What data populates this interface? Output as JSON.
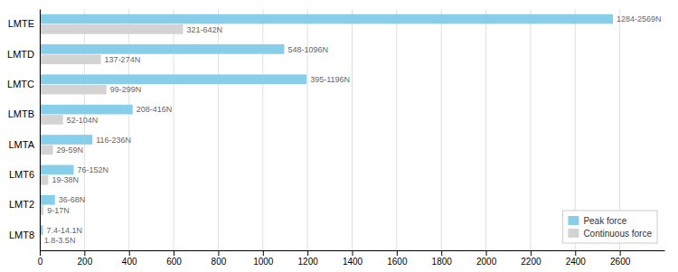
{
  "chart_data": {
    "type": "bar",
    "orientation": "horizontal",
    "categories": [
      "LMT8",
      "LMT2",
      "LMT6",
      "LMTA",
      "LMTB",
      "LMTC",
      "LMTD",
      "LMTE"
    ],
    "series": [
      {
        "name": "Peak force",
        "color": "#87CEEB",
        "values": [
          14.1,
          68,
          152,
          236,
          416,
          1196,
          1096,
          2569
        ],
        "value_labels": [
          "7.4-14.1N",
          "36-68N",
          "76-152N",
          "116-236N",
          "208-416N",
          "395-1196N",
          "548-1096N",
          "1284-2569N"
        ]
      },
      {
        "name": "Continuous force",
        "color": "#D3D3D3",
        "values": [
          3.5,
          17,
          38,
          59,
          104,
          299,
          274,
          642
        ],
        "value_labels": [
          "1.8-3.5N",
          "9-17N",
          "19-38N",
          "29-59N",
          "52-104N",
          "99-299N",
          "137-274N",
          "321-642N"
        ]
      }
    ],
    "xlim": [
      0,
      2800
    ],
    "xticks": [
      0,
      200,
      400,
      600,
      800,
      1000,
      1200,
      1400,
      1600,
      1800,
      2000,
      2200,
      2400,
      2600
    ],
    "grid": true,
    "legend": "lower right",
    "data_labels": true
  }
}
